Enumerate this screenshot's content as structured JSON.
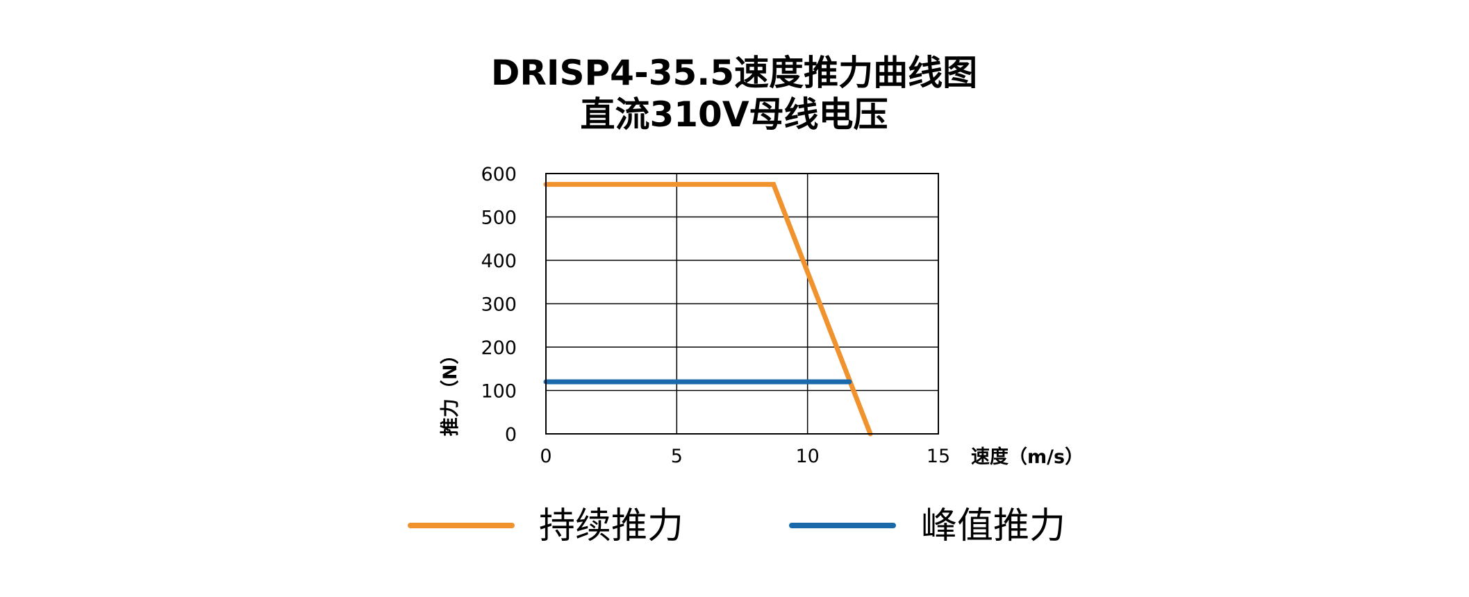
{
  "chart_data": {
    "type": "line",
    "title": "DRISP4-35.5速度推力曲线图",
    "subtitle": "直流310V母线电压",
    "xlabel": "速度（m/s）",
    "ylabel": "推力（N）",
    "xlim": [
      0,
      15
    ],
    "ylim": [
      0,
      600
    ],
    "xticks": [
      0,
      5,
      10,
      15
    ],
    "yticks": [
      0,
      100,
      200,
      300,
      400,
      500,
      600
    ],
    "xtick_labels": [
      "0",
      "5",
      "10",
      "15"
    ],
    "ytick_labels": [
      "0",
      "100",
      "200",
      "300",
      "400",
      "500",
      "600"
    ],
    "grid": true,
    "legend_position": "bottom",
    "series": [
      {
        "name": "持续推力",
        "color": "#F0922E",
        "x": [
          0,
          8.7,
          12.4
        ],
        "y": [
          575,
          575,
          0
        ]
      },
      {
        "name": "峰值推力",
        "color": "#1A6AAB",
        "x": [
          0,
          11.6
        ],
        "y": [
          120,
          120
        ]
      }
    ]
  }
}
